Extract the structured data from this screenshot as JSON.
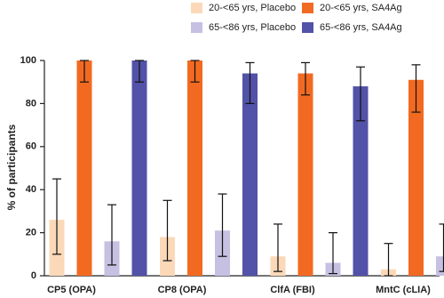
{
  "chart_data": {
    "type": "bar",
    "y_label": "% of participants",
    "categories": [
      "CP5 (OPA)",
      "CP8 (OPA)",
      "ClfA (FBI)",
      "MntC (cLIA)"
    ],
    "series": [
      {
        "name": "20-<65 yrs, Placebo",
        "color": "#fbd9b8",
        "values": [
          26,
          18,
          9,
          3
        ],
        "error_lower": [
          10,
          7,
          2,
          0
        ],
        "error_upper": [
          45,
          35,
          24,
          15
        ]
      },
      {
        "name": "20-<65 yrs, SA4Ag",
        "color": "#f26a22",
        "values": [
          100,
          100,
          94,
          91
        ],
        "error_lower": [
          90,
          90,
          84,
          76
        ],
        "error_upper": [
          100,
          100,
          99,
          98
        ]
      },
      {
        "name": "65-<86 yrs, Placebo",
        "color": "#c6c0e2",
        "values": [
          16,
          21,
          6,
          9
        ],
        "error_lower": [
          5,
          9,
          1,
          2
        ],
        "error_upper": [
          33,
          38,
          20,
          24
        ]
      },
      {
        "name": "65-<86 yrs, SA4Ag",
        "color": "#5252a8",
        "values": [
          100,
          94,
          88,
          94
        ],
        "error_lower": [
          90,
          80,
          72,
          80
        ],
        "error_upper": [
          100,
          99,
          97,
          99
        ]
      }
    ],
    "ylim": [
      0,
      100
    ],
    "yticks": [
      0,
      20,
      40,
      60,
      80,
      100
    ]
  }
}
